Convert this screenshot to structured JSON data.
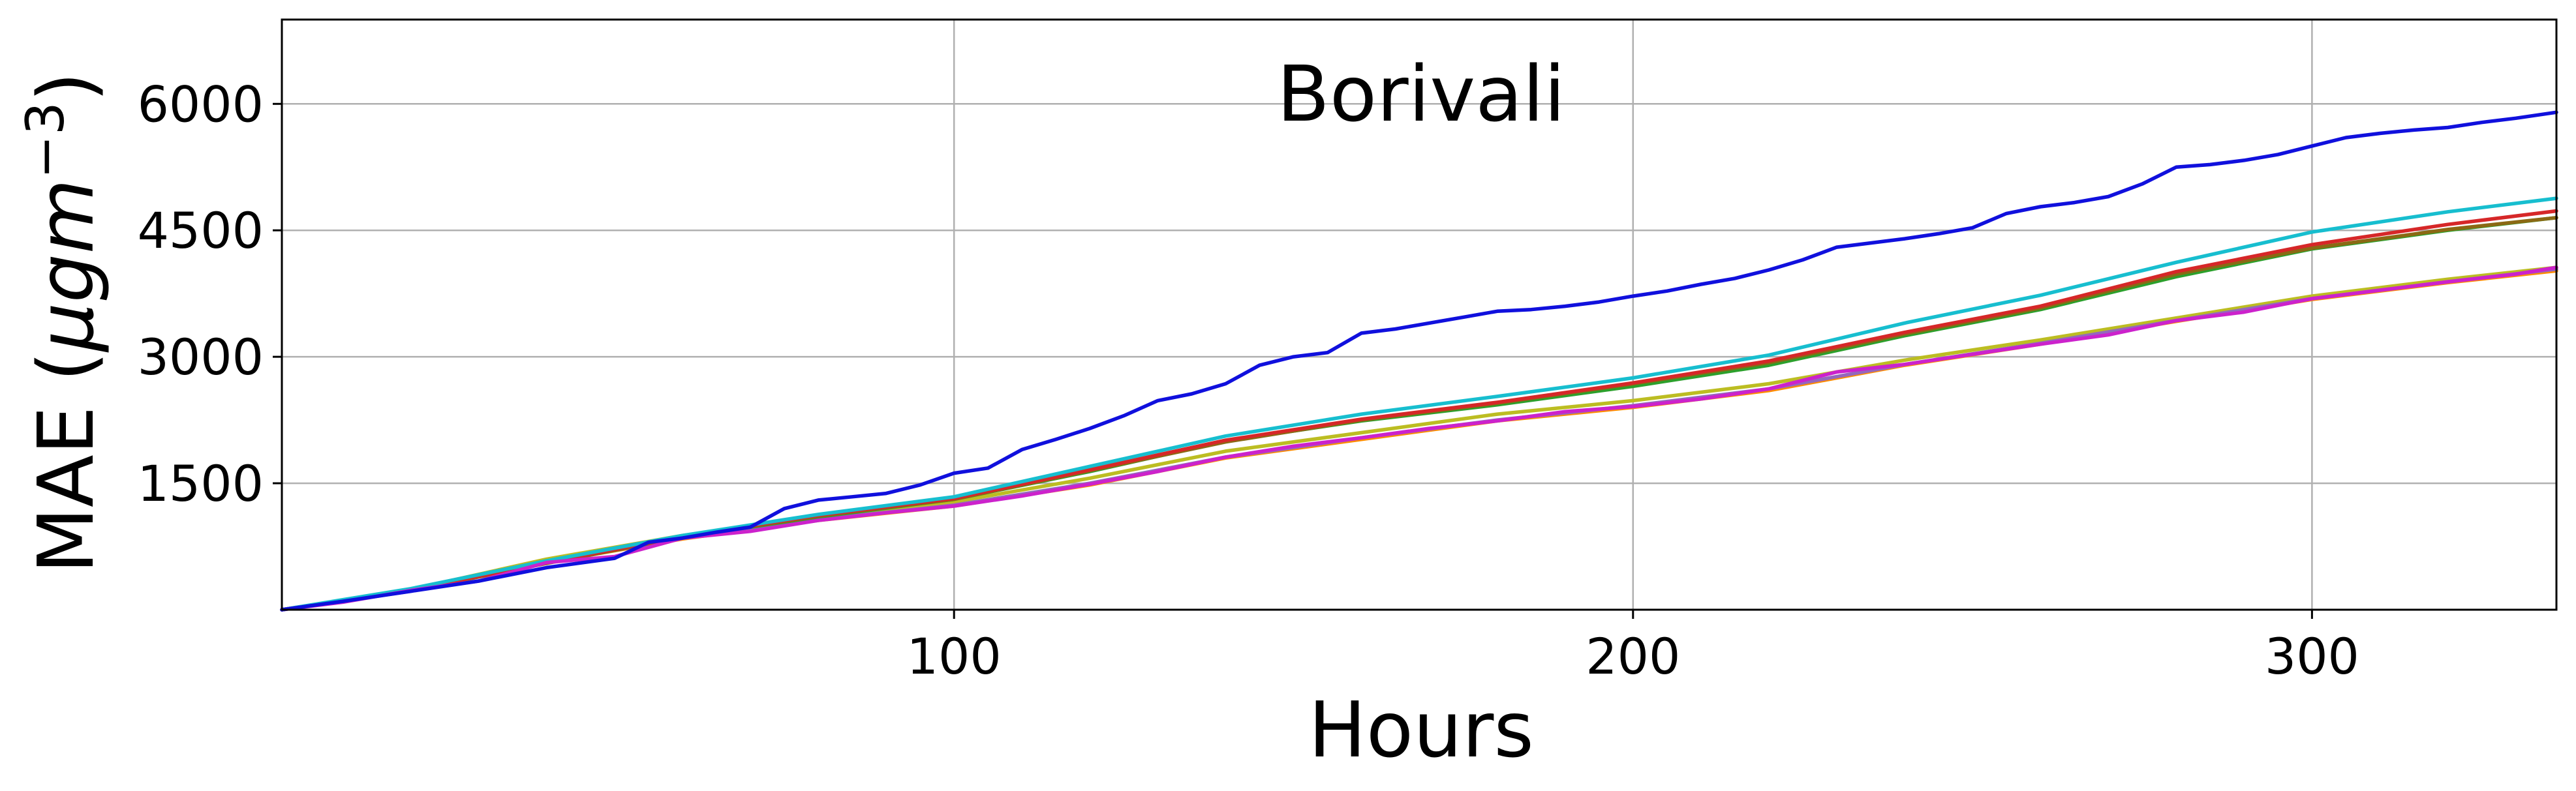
{
  "chart_data": {
    "type": "line",
    "title": "Borivali",
    "xlabel": "Hours",
    "ylabel_plain": "MAE (",
    "ylabel_mu": "μ",
    "ylabel_g": "gm",
    "ylabel_exp": "−3",
    "ylabel_close": ")",
    "xlim": [
      1,
      336
    ],
    "ylim": [
      0,
      7000
    ],
    "xticks": [
      100,
      200,
      300
    ],
    "xtick_labels": [
      "100",
      "200",
      "300"
    ],
    "yticks": [
      1500,
      3000,
      4500,
      6000
    ],
    "ytick_labels": [
      "1500",
      "3000",
      "4500",
      "6000"
    ],
    "grid": true,
    "series": [
      {
        "color": "#ff8c00",
        "points": [
          [
            1,
            0
          ],
          [
            20,
            230
          ],
          [
            40,
            560
          ],
          [
            60,
            840
          ],
          [
            80,
            1060
          ],
          [
            100,
            1230
          ],
          [
            120,
            1480
          ],
          [
            140,
            1800
          ],
          [
            160,
            2020
          ],
          [
            180,
            2240
          ],
          [
            200,
            2400
          ],
          [
            220,
            2600
          ],
          [
            240,
            2900
          ],
          [
            260,
            3150
          ],
          [
            280,
            3420
          ],
          [
            300,
            3680
          ],
          [
            320,
            3880
          ],
          [
            336,
            4020
          ]
        ]
      },
      {
        "color": "#bcbd22",
        "points": [
          [
            1,
            0
          ],
          [
            20,
            240
          ],
          [
            40,
            600
          ],
          [
            60,
            880
          ],
          [
            80,
            1100
          ],
          [
            100,
            1280
          ],
          [
            120,
            1560
          ],
          [
            140,
            1880
          ],
          [
            160,
            2100
          ],
          [
            180,
            2320
          ],
          [
            200,
            2480
          ],
          [
            220,
            2680
          ],
          [
            240,
            2960
          ],
          [
            260,
            3200
          ],
          [
            280,
            3460
          ],
          [
            300,
            3720
          ],
          [
            320,
            3920
          ],
          [
            336,
            4060
          ]
        ]
      },
      {
        "color": "#9467bd",
        "points": [
          [
            1,
            0
          ],
          [
            20,
            220
          ],
          [
            40,
            560
          ],
          [
            60,
            850
          ],
          [
            80,
            1070
          ],
          [
            100,
            1240
          ],
          [
            120,
            1500
          ],
          [
            140,
            1810
          ],
          [
            160,
            2040
          ],
          [
            180,
            2250
          ],
          [
            200,
            2420
          ],
          [
            220,
            2620
          ],
          [
            240,
            2910
          ],
          [
            260,
            3160
          ],
          [
            280,
            3430
          ],
          [
            300,
            3690
          ],
          [
            320,
            3890
          ],
          [
            336,
            4040
          ]
        ]
      },
      {
        "color": "#2ca02c",
        "points": [
          [
            1,
            0
          ],
          [
            20,
            230
          ],
          [
            40,
            560
          ],
          [
            60,
            860
          ],
          [
            80,
            1100
          ],
          [
            100,
            1310
          ],
          [
            120,
            1640
          ],
          [
            140,
            2000
          ],
          [
            160,
            2240
          ],
          [
            180,
            2430
          ],
          [
            200,
            2650
          ],
          [
            220,
            2900
          ],
          [
            240,
            3250
          ],
          [
            260,
            3560
          ],
          [
            280,
            3950
          ],
          [
            300,
            4280
          ],
          [
            320,
            4500
          ],
          [
            336,
            4650
          ]
        ]
      },
      {
        "color": "#8b6914",
        "points": [
          [
            1,
            0
          ],
          [
            20,
            230
          ],
          [
            40,
            550
          ],
          [
            60,
            860
          ],
          [
            80,
            1110
          ],
          [
            100,
            1310
          ],
          [
            120,
            1650
          ],
          [
            140,
            1990
          ],
          [
            160,
            2250
          ],
          [
            180,
            2450
          ],
          [
            200,
            2680
          ],
          [
            220,
            2930
          ],
          [
            240,
            3270
          ],
          [
            260,
            3580
          ],
          [
            280,
            3980
          ],
          [
            300,
            4290
          ],
          [
            320,
            4510
          ],
          [
            336,
            4650
          ]
        ]
      },
      {
        "color": "#d62728",
        "points": [
          [
            1,
            0
          ],
          [
            20,
            235
          ],
          [
            40,
            560
          ],
          [
            60,
            870
          ],
          [
            80,
            1120
          ],
          [
            100,
            1320
          ],
          [
            120,
            1660
          ],
          [
            140,
            2010
          ],
          [
            160,
            2260
          ],
          [
            180,
            2460
          ],
          [
            200,
            2690
          ],
          [
            220,
            2950
          ],
          [
            240,
            3290
          ],
          [
            260,
            3600
          ],
          [
            280,
            4010
          ],
          [
            300,
            4330
          ],
          [
            320,
            4570
          ],
          [
            336,
            4730
          ]
        ]
      },
      {
        "color": "#17becf",
        "points": [
          [
            1,
            0
          ],
          [
            20,
            250
          ],
          [
            40,
            580
          ],
          [
            60,
            880
          ],
          [
            80,
            1130
          ],
          [
            100,
            1340
          ],
          [
            120,
            1700
          ],
          [
            140,
            2060
          ],
          [
            160,
            2320
          ],
          [
            180,
            2530
          ],
          [
            200,
            2750
          ],
          [
            220,
            3020
          ],
          [
            240,
            3400
          ],
          [
            260,
            3730
          ],
          [
            280,
            4120
          ],
          [
            300,
            4480
          ],
          [
            320,
            4720
          ],
          [
            336,
            4880
          ]
        ]
      },
      {
        "color": "#cc22cc",
        "points": [
          [
            1,
            0
          ],
          [
            10,
            90
          ],
          [
            20,
            230
          ],
          [
            30,
            340
          ],
          [
            40,
            560
          ],
          [
            50,
            630
          ],
          [
            60,
            850
          ],
          [
            70,
            930
          ],
          [
            80,
            1060
          ],
          [
            90,
            1150
          ],
          [
            100,
            1230
          ],
          [
            110,
            1350
          ],
          [
            120,
            1490
          ],
          [
            130,
            1640
          ],
          [
            140,
            1810
          ],
          [
            150,
            1940
          ],
          [
            160,
            2040
          ],
          [
            170,
            2150
          ],
          [
            180,
            2240
          ],
          [
            190,
            2350
          ],
          [
            200,
            2410
          ],
          [
            210,
            2500
          ],
          [
            220,
            2620
          ],
          [
            230,
            2820
          ],
          [
            240,
            2910
          ],
          [
            250,
            3030
          ],
          [
            260,
            3150
          ],
          [
            270,
            3260
          ],
          [
            280,
            3430
          ],
          [
            290,
            3530
          ],
          [
            300,
            3690
          ],
          [
            310,
            3790
          ],
          [
            320,
            3890
          ],
          [
            330,
            3980
          ],
          [
            336,
            4060
          ]
        ]
      },
      {
        "color": "#1010dd",
        "points": [
          [
            1,
            0
          ],
          [
            10,
            100
          ],
          [
            20,
            220
          ],
          [
            30,
            340
          ],
          [
            40,
            500
          ],
          [
            50,
            610
          ],
          [
            55,
            800
          ],
          [
            60,
            850
          ],
          [
            65,
            920
          ],
          [
            70,
            980
          ],
          [
            75,
            1200
          ],
          [
            80,
            1300
          ],
          [
            85,
            1340
          ],
          [
            90,
            1380
          ],
          [
            95,
            1480
          ],
          [
            100,
            1620
          ],
          [
            105,
            1680
          ],
          [
            110,
            1900
          ],
          [
            115,
            2020
          ],
          [
            120,
            2150
          ],
          [
            125,
            2300
          ],
          [
            130,
            2480
          ],
          [
            135,
            2560
          ],
          [
            140,
            2680
          ],
          [
            145,
            2900
          ],
          [
            150,
            3000
          ],
          [
            155,
            3050
          ],
          [
            160,
            3280
          ],
          [
            165,
            3330
          ],
          [
            170,
            3400
          ],
          [
            175,
            3470
          ],
          [
            180,
            3540
          ],
          [
            185,
            3560
          ],
          [
            190,
            3600
          ],
          [
            195,
            3650
          ],
          [
            200,
            3720
          ],
          [
            205,
            3780
          ],
          [
            210,
            3860
          ],
          [
            215,
            3930
          ],
          [
            220,
            4030
          ],
          [
            225,
            4150
          ],
          [
            230,
            4300
          ],
          [
            235,
            4350
          ],
          [
            240,
            4400
          ],
          [
            245,
            4460
          ],
          [
            250,
            4530
          ],
          [
            255,
            4700
          ],
          [
            260,
            4780
          ],
          [
            265,
            4830
          ],
          [
            270,
            4900
          ],
          [
            275,
            5050
          ],
          [
            280,
            5250
          ],
          [
            285,
            5280
          ],
          [
            290,
            5330
          ],
          [
            295,
            5400
          ],
          [
            300,
            5500
          ],
          [
            305,
            5600
          ],
          [
            310,
            5650
          ],
          [
            315,
            5690
          ],
          [
            320,
            5720
          ],
          [
            325,
            5780
          ],
          [
            330,
            5830
          ],
          [
            336,
            5900
          ]
        ]
      }
    ]
  }
}
